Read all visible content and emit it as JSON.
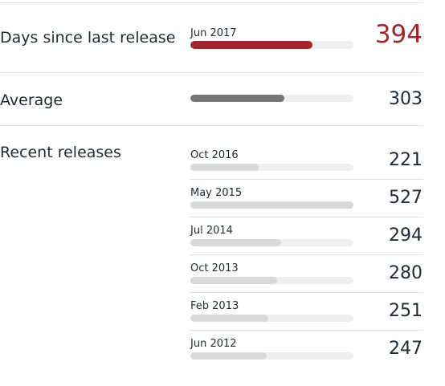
{
  "colors": {
    "current": "#a3262d",
    "average": "#767676",
    "recent": "#d9d9d9",
    "track": "#eeeff0",
    "divider": "#dfe3e6"
  },
  "max_days": 527,
  "current": {
    "label": "Days since last release",
    "date": "Jun 2017",
    "days": 394,
    "days_text": "394"
  },
  "average": {
    "label": "Average",
    "days": 303,
    "days_text": "303"
  },
  "recent": {
    "label": "Recent releases",
    "items": [
      {
        "date": "Oct 2016",
        "days": 221,
        "days_text": "221"
      },
      {
        "date": "May 2015",
        "days": 527,
        "days_text": "527"
      },
      {
        "date": "Jul 2014",
        "days": 294,
        "days_text": "294"
      },
      {
        "date": "Oct 2013",
        "days": 280,
        "days_text": "280"
      },
      {
        "date": "Feb 2013",
        "days": 251,
        "days_text": "251"
      },
      {
        "date": "Jun 2012",
        "days": 247,
        "days_text": "247"
      }
    ]
  }
}
